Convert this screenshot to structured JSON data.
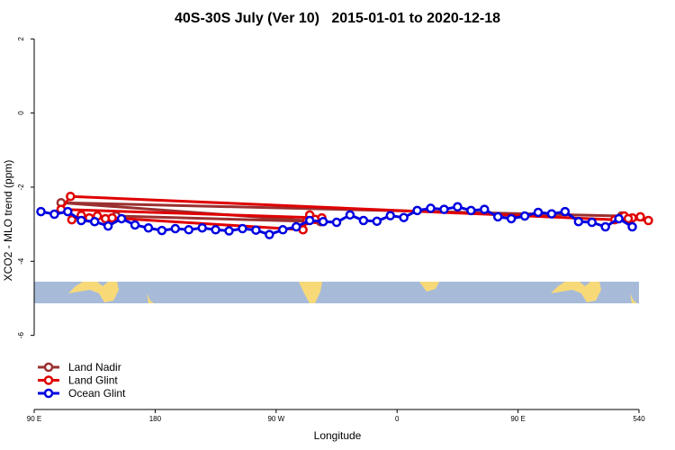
{
  "chart_data": {
    "type": "line",
    "title": "40S-30S July (Ver 10)   2015-01-01 to 2020-12-18",
    "x_label": "Longitude",
    "y_label": "XCO2 - MLO trend (ppm)",
    "xlim": [
      90,
      540
    ],
    "ylim": [
      -8,
      2.2
    ],
    "xticks": [
      {
        "value": 90,
        "label": "90 E"
      },
      180,
      {
        "value": 270,
        "label": "90 W"
      },
      {
        "value": 360,
        "label": "0"
      },
      {
        "value": 450,
        "label": "90 E"
      },
      540
    ],
    "yticks": [
      2,
      0,
      -2,
      -4,
      -6
    ],
    "legend": "bottom-left",
    "series": [
      {
        "name": "Land Nadir",
        "color": "#9b3030",
        "x": [
          151,
          303,
          110,
          527
        ],
        "values": [
          -2.78,
          -2.93,
          -2.42,
          -2.78
        ]
      },
      {
        "name": "Land Glint",
        "color": "#e00000",
        "x": [
          118,
          125,
          131,
          137,
          143,
          148,
          290,
          293,
          295,
          299,
          304,
          110,
          117,
          522,
          529,
          535,
          541,
          547,
          532
        ],
        "values": [
          -2.88,
          -2.76,
          -2.83,
          -2.78,
          -2.85,
          -2.83,
          -3.15,
          -2.9,
          -2.75,
          -2.87,
          -2.83,
          -2.6,
          -2.25,
          -2.88,
          -2.78,
          -2.83,
          -2.8,
          -2.9,
          -2.85
        ]
      },
      {
        "name": "Ocean Glint",
        "color": "#0000e0",
        "x": [
          95,
          105,
          115,
          125,
          135,
          145,
          155,
          165,
          175,
          185,
          195,
          205,
          215,
          225,
          235,
          245,
          255,
          265,
          275,
          285,
          295,
          305,
          315,
          325,
          335,
          345,
          355,
          365,
          375,
          385,
          395,
          405,
          415,
          425,
          435,
          445,
          455,
          465,
          475,
          485,
          495,
          505,
          515,
          525,
          535
        ],
        "values": [
          -2.66,
          -2.73,
          -2.66,
          -2.9,
          -2.93,
          -3.05,
          -2.85,
          -3.02,
          -3.1,
          -3.17,
          -3.12,
          -3.15,
          -3.1,
          -3.15,
          -3.18,
          -3.12,
          -3.16,
          -3.28,
          -3.15,
          -3.07,
          -2.9,
          -2.93,
          -2.95,
          -2.75,
          -2.9,
          -2.92,
          -2.77,
          -2.82,
          -2.63,
          -2.57,
          -2.6,
          -2.53,
          -2.63,
          -2.6,
          -2.8,
          -2.85,
          -2.78,
          -2.68,
          -2.72,
          -2.66,
          -2.93,
          -2.95,
          -3.07,
          -2.85,
          -3.07
        ]
      }
    ]
  }
}
